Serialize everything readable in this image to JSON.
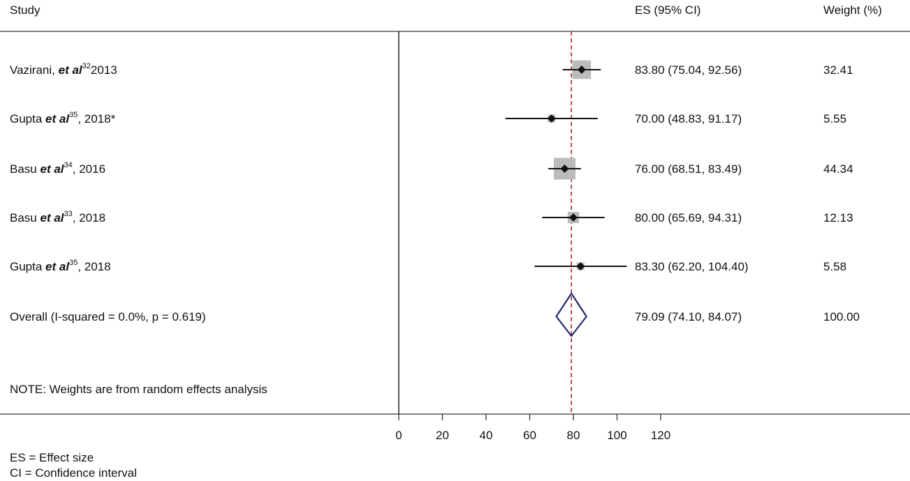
{
  "chart_data": {
    "type": "forest",
    "headers": {
      "study": "Study",
      "es": "ES (95% CI)",
      "weight": "Weight (%)"
    },
    "studies": [
      {
        "author": "Vazirani, ",
        "etal": "et al",
        "ref": "32",
        "year": "2013",
        "es": 83.8,
        "lo": 75.04,
        "hi": 92.56,
        "es_text": "83.80 (75.04, 92.56)",
        "weight": 32.41,
        "weight_text": "32.41"
      },
      {
        "author": "Gupta ",
        "etal": "et al",
        "ref": "35",
        "year": ", 2018*",
        "es": 70.0,
        "lo": 48.83,
        "hi": 91.17,
        "es_text": "70.00 (48.83, 91.17)",
        "weight": 5.55,
        "weight_text": "5.55"
      },
      {
        "author": "Basu ",
        "etal": "et al",
        "ref": "34",
        "year": ", 2016",
        "es": 76.0,
        "lo": 68.51,
        "hi": 83.49,
        "es_text": "76.00 (68.51, 83.49)",
        "weight": 44.34,
        "weight_text": "44.34"
      },
      {
        "author": "Basu ",
        "etal": "et al",
        "ref": "33",
        "year": ",  2018",
        "es": 80.0,
        "lo": 65.69,
        "hi": 94.31,
        "es_text": "80.00 (65.69, 94.31)",
        "weight": 12.13,
        "weight_text": "12.13"
      },
      {
        "author": "Gupta ",
        "etal": "et al",
        "ref": "35",
        "year": ", 2018",
        "es": 83.3,
        "lo": 62.2,
        "hi": 104.4,
        "es_text": "83.30 (62.20, 104.40)",
        "weight": 5.58,
        "weight_text": "5.58"
      }
    ],
    "overall": {
      "label": "Overall  (I-squared = 0.0%, p = 0.619)",
      "es": 79.09,
      "lo": 74.1,
      "hi": 84.07,
      "es_text": "79.09 (74.10, 84.07)",
      "weight_text": "100.00"
    },
    "note": "NOTE: Weights are from random effects analysis",
    "x_ticks": [
      0,
      20,
      40,
      60,
      80,
      100,
      120
    ],
    "xlim": [
      0,
      120
    ],
    "reference_line": 79.09,
    "footnotes": [
      "ES = Effect size",
      "CI = Confidence interval"
    ],
    "colors": {
      "line": "#111111",
      "box": "#bcbcbc",
      "diamond": "#1f2a6b",
      "reference": "#b22222"
    }
  }
}
